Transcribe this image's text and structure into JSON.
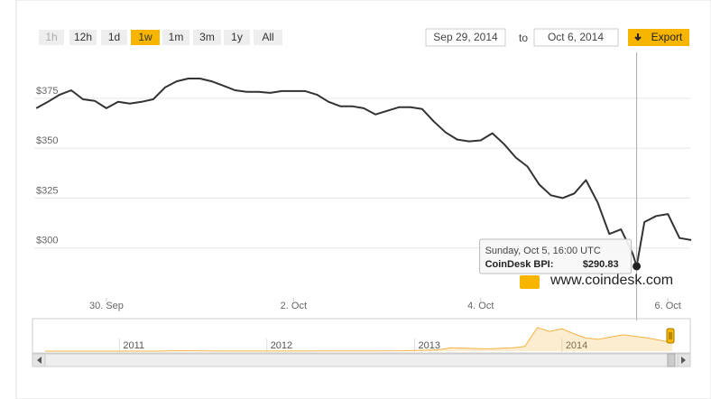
{
  "controls": {
    "ranges": [
      "1h",
      "12h",
      "1d",
      "1w",
      "1m",
      "3m",
      "1y",
      "All"
    ],
    "selected_range": 3,
    "disabled_range": 0,
    "from": "Sep 29, 2014",
    "to_label": "to",
    "to": "Oct 6, 2014",
    "export": "Export",
    "watermark": "www.coindesk.com"
  },
  "chart_data": [
    {
      "type": "line",
      "color": "#333333",
      "grid": true,
      "x": [
        "2014-09-29T06:00",
        "2014-09-29T09:00",
        "2014-09-29T12:00",
        "2014-09-29T15:00",
        "2014-09-29T18:00",
        "2014-09-29T21:00",
        "2014-09-30T00:00",
        "2014-09-30T03:00",
        "2014-09-30T06:00",
        "2014-09-30T09:00",
        "2014-09-30T12:00",
        "2014-09-30T15:00",
        "2014-09-30T18:00",
        "2014-09-30T21:00",
        "2014-10-01T00:00",
        "2014-10-01T03:00",
        "2014-10-01T06:00",
        "2014-10-01T09:00",
        "2014-10-01T12:00",
        "2014-10-01T15:00",
        "2014-10-01T18:00",
        "2014-10-01T21:00",
        "2014-10-02T00:00",
        "2014-10-02T03:00",
        "2014-10-02T06:00",
        "2014-10-02T09:00",
        "2014-10-02T12:00",
        "2014-10-02T15:00",
        "2014-10-02T18:00",
        "2014-10-02T21:00",
        "2014-10-03T00:00",
        "2014-10-03T03:00",
        "2014-10-03T06:00",
        "2014-10-03T09:00",
        "2014-10-03T12:00",
        "2014-10-03T15:00",
        "2014-10-03T18:00",
        "2014-10-03T21:00",
        "2014-10-04T00:00",
        "2014-10-04T03:00",
        "2014-10-04T06:00",
        "2014-10-04T09:00",
        "2014-10-04T12:00",
        "2014-10-04T15:00",
        "2014-10-04T18:00",
        "2014-10-04T21:00",
        "2014-10-05T00:00",
        "2014-10-05T03:00",
        "2014-10-05T06:00",
        "2014-10-05T09:00",
        "2014-10-05T12:00",
        "2014-10-05T15:00",
        "2014-10-05T16:00",
        "2014-10-05T18:00",
        "2014-10-05T21:00",
        "2014-10-06T00:00",
        "2014-10-06T03:00",
        "2014-10-06T06:00"
      ],
      "values": [
        370,
        373.2,
        376.8,
        379,
        374.5,
        373.7,
        370,
        373.2,
        372.3,
        373.2,
        374.5,
        380.4,
        383.5,
        384.9,
        384.9,
        383.5,
        381.3,
        379,
        378.2,
        378.2,
        377.7,
        378.6,
        378.6,
        378.6,
        376.8,
        373.2,
        371,
        371,
        370,
        366.9,
        368.7,
        370.5,
        370.5,
        369.6,
        363.3,
        357.9,
        354.3,
        353.4,
        353.9,
        357.5,
        352,
        345.3,
        340.8,
        331.8,
        326.4,
        325,
        327.3,
        334,
        322.8,
        307,
        309.3,
        297,
        290.83,
        313,
        316,
        317,
        305,
        304
      ],
      "xlim": [
        "2014-09-29T05:30",
        "2014-10-06T05:45"
      ],
      "xticks": [
        {
          "value": "2014-09-30T00:00",
          "label": "30. Sep"
        },
        {
          "value": "2014-10-02T00:00",
          "label": "2. Oct"
        },
        {
          "value": "2014-10-04T00:00",
          "label": "4. Oct"
        },
        {
          "value": "2014-10-06T00:00",
          "label": "6. Oct"
        }
      ],
      "ylim": [
        275,
        398
      ],
      "yticks": [
        {
          "value": 300,
          "label": "$300"
        },
        {
          "value": 325,
          "label": "$325"
        },
        {
          "value": 350,
          "label": "$350"
        },
        {
          "value": 375,
          "label": "$375"
        }
      ],
      "tooltip": {
        "x": "2014-10-05T16:00",
        "value": 290.83,
        "date_label": "Sunday, Oct 5, 16:00 UTC",
        "series_label": "CoinDesk BPI:",
        "value_label": "$290.83"
      }
    },
    {
      "type": "area",
      "color": "#f5b342",
      "x": [
        "2010-07",
        "2010-10",
        "2011-01",
        "2011-04",
        "2011-06",
        "2011-08",
        "2011-11",
        "2012-02",
        "2012-06",
        "2012-09",
        "2012-12",
        "2013-03",
        "2013-04",
        "2013-05",
        "2013-07",
        "2013-09",
        "2013-10",
        "2013-11",
        "2013-12",
        "2014-01",
        "2014-02",
        "2014-03",
        "2014-04",
        "2014-06",
        "2014-08",
        "2014-10"
      ],
      "values": [
        0.1,
        0.1,
        0.3,
        0.8,
        18,
        10,
        3,
        5,
        6,
        11,
        13,
        50,
        130,
        115,
        85,
        130,
        180,
        900,
        750,
        850,
        650,
        500,
        450,
        620,
        500,
        330
      ],
      "xlim": [
        "2010-07",
        "2014-10"
      ],
      "ylim": [
        0,
        1200
      ],
      "xticks": [
        "2011",
        "2012",
        "2013",
        "2014"
      ]
    }
  ]
}
